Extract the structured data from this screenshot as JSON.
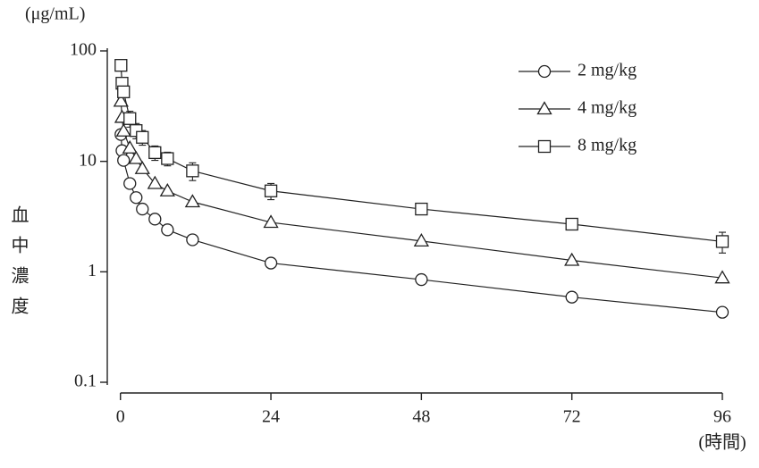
{
  "chart_data": {
    "type": "line",
    "y_unit": "(μg/mL)",
    "ylabel": "血中濃度",
    "x_unit": "(時間)",
    "log_y": true,
    "legend": "upper right",
    "x": [
      0.083,
      0.25,
      0.5,
      1.5,
      2.5,
      3.5,
      5.5,
      7.5,
      11.5,
      24,
      48,
      72,
      96
    ],
    "series": [
      {
        "name": "2 mg/kg",
        "color": "#222222",
        "marker": "circle",
        "values": [
          17.5,
          12.5,
          10.2,
          6.3,
          4.7,
          3.7,
          3.0,
          2.4,
          1.95,
          1.2,
          0.85,
          0.59,
          0.43
        ]
      },
      {
        "name": "4 mg/kg",
        "color": "#222222",
        "marker": "triangle",
        "values": [
          35,
          25,
          18.8,
          13.2,
          10.6,
          8.6,
          6.3,
          5.4,
          4.3,
          2.8,
          1.9,
          1.27,
          0.88
        ]
      },
      {
        "name": "8 mg/kg",
        "color": "#222222",
        "marker": "square",
        "values": [
          74,
          51,
          42.6,
          24.4,
          19,
          16.5,
          12,
          10.6,
          8.2,
          5.4,
          3.7,
          2.7,
          1.88
        ],
        "errors": [
          null,
          null,
          null,
          4,
          3,
          2.5,
          1.8,
          1.5,
          1.5,
          0.9,
          null,
          null,
          0.4
        ]
      }
    ],
    "xlim": [
      -2.1,
      96
    ],
    "xticks": [
      0,
      24,
      48,
      72,
      96
    ],
    "ylim": [
      0.1,
      100
    ],
    "yticks": [
      0.1,
      1,
      10,
      100
    ]
  }
}
